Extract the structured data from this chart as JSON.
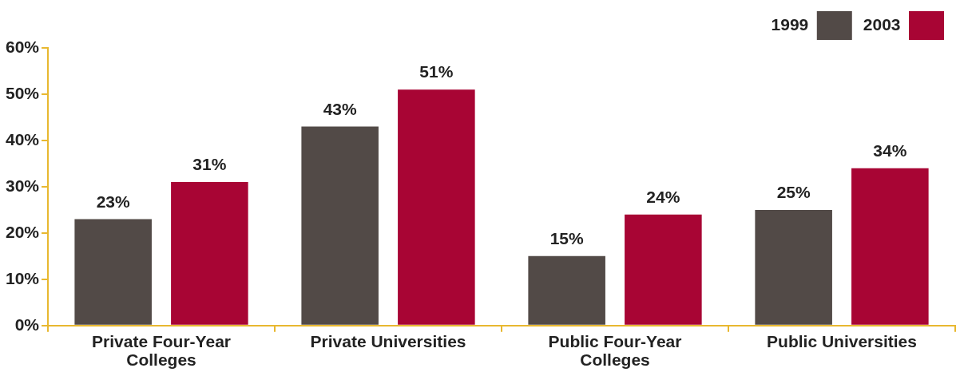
{
  "chart_data": {
    "type": "bar",
    "categories": [
      "Private Four-Year Colleges",
      "Private Universities",
      "Public Four-Year Colleges",
      "Public Universities"
    ],
    "series": [
      {
        "name": "1999",
        "color": "#524a47",
        "values": [
          23,
          43,
          15,
          25
        ],
        "value_labels": [
          "23%",
          "43%",
          "15%",
          "25%"
        ]
      },
      {
        "name": "2003",
        "color": "#a80534",
        "values": [
          31,
          51,
          24,
          34
        ],
        "value_labels": [
          "31%",
          "51%",
          "24%",
          "34%"
        ]
      }
    ],
    "ylim": [
      0,
      60
    ],
    "yticks": [
      {
        "value": 0,
        "label": "0%"
      },
      {
        "value": 10,
        "label": "10%"
      },
      {
        "value": 20,
        "label": "20%"
      },
      {
        "value": 30,
        "label": "30%"
      },
      {
        "value": 40,
        "label": "40%"
      },
      {
        "value": 50,
        "label": "50%"
      },
      {
        "value": 60,
        "label": "60%"
      }
    ],
    "grid": false,
    "legend": "top right"
  }
}
